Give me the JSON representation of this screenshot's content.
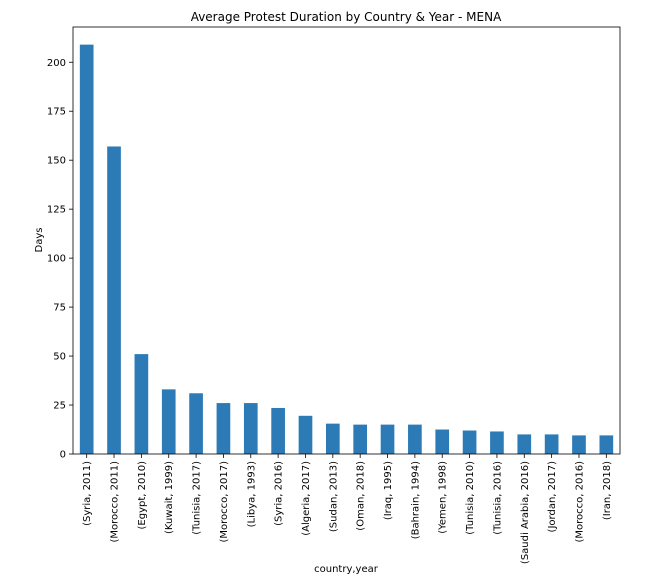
{
  "chart_data": {
    "type": "bar",
    "title": "Average Protest Duration by Country & Year - MENA",
    "xlabel": "country,year",
    "ylabel": "Days",
    "ylim": [
      0,
      218
    ],
    "yticks": [
      0,
      25,
      50,
      75,
      100,
      125,
      150,
      175,
      200
    ],
    "bar_color": "#2c7bb6",
    "grid": false,
    "categories": [
      "(Syria, 2011)",
      "(Morocco, 2011)",
      "(Egypt, 2010)",
      "(Kuwait, 1999)",
      "(Tunisia, 2017)",
      "(Morocco, 2017)",
      "(Libya, 1993)",
      "(Syria, 2016)",
      "(Algeria, 2017)",
      "(Sudan, 2013)",
      "(Oman, 2018)",
      "(Iraq, 1995)",
      "(Bahrain, 1994)",
      "(Yemen, 1998)",
      "(Tunisia, 2010)",
      "(Tunisia, 2016)",
      "(Saudi Arabia, 2016)",
      "(Jordan, 2017)",
      "(Morocco, 2016)",
      "(Iran, 2018)"
    ],
    "values": [
      209,
      157,
      51,
      33,
      31,
      26,
      26,
      23.5,
      19.5,
      15.5,
      15,
      15,
      15,
      12.5,
      12,
      11.5,
      10,
      10,
      9.5,
      9.5
    ]
  }
}
